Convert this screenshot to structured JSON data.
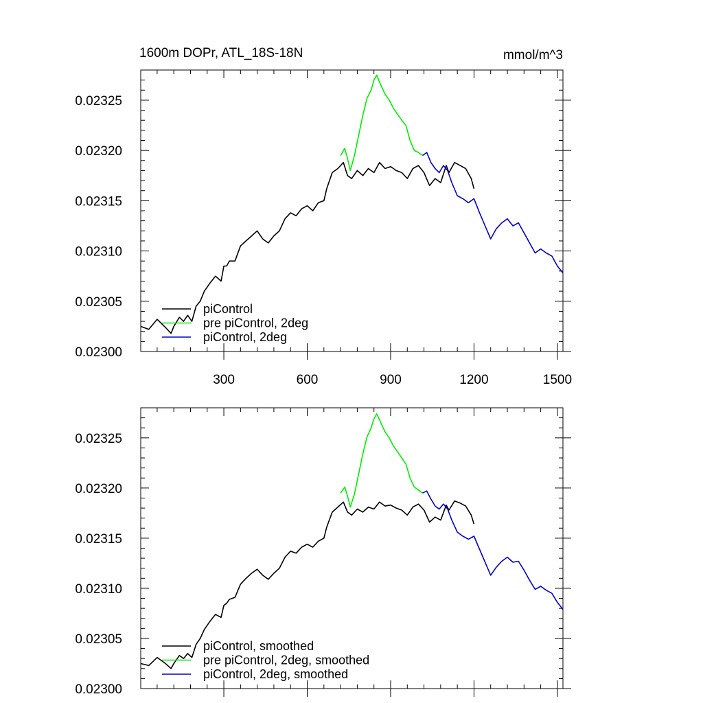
{
  "figure": {
    "title_left": "1600m DOPr, ATL_18S-18N",
    "title_right": "mmol/m^3"
  },
  "colors": {
    "control": "#000000",
    "pre": "#00ee00",
    "twodeg": "#0000cc"
  },
  "chart_data": [
    {
      "type": "line",
      "title": "1600m DOPr, ATL_18S-18N",
      "units": "mmol/m^3",
      "xlim": [
        1,
        1520
      ],
      "ylim": [
        0.023,
        0.02328
      ],
      "xticks": [
        300,
        600,
        900,
        1200,
        1500
      ],
      "xtick_labels": [
        "300",
        "600",
        "900",
        "1200",
        "1500"
      ],
      "yticks": [
        0.023,
        0.02305,
        0.0231,
        0.02315,
        0.0232,
        0.02325
      ],
      "ytick_labels": [
        "0.02300",
        "0.02305",
        "0.02310",
        "0.02315",
        "0.02320",
        "0.02325"
      ],
      "legend_position": "bottom-left",
      "series": [
        {
          "name": "piControl",
          "color": "#000000",
          "x": [
            1,
            30,
            60,
            75,
            90,
            110,
            120,
            140,
            155,
            170,
            185,
            200,
            215,
            230,
            250,
            270,
            290,
            300,
            310,
            320,
            340,
            360,
            380,
            400,
            420,
            440,
            460,
            480,
            500,
            520,
            540,
            560,
            580,
            600,
            620,
            640,
            660,
            670,
            690,
            710,
            730,
            745,
            760,
            780,
            800,
            820,
            840,
            860,
            880,
            900,
            920,
            940,
            960,
            980,
            1000,
            1020,
            1040,
            1060,
            1080,
            1100,
            1110,
            1130,
            1150,
            1170,
            1190,
            1200
          ],
          "values": [
            0.023025,
            0.023022,
            0.023032,
            0.023028,
            0.023024,
            0.023018,
            0.023025,
            0.023034,
            0.02303,
            0.023036,
            0.02303,
            0.023045,
            0.02305,
            0.02306,
            0.023068,
            0.023075,
            0.02307,
            0.023085,
            0.023085,
            0.02309,
            0.02309,
            0.023105,
            0.02311,
            0.023115,
            0.02312,
            0.023112,
            0.023108,
            0.023115,
            0.02312,
            0.023132,
            0.023138,
            0.023135,
            0.023142,
            0.023145,
            0.02314,
            0.023148,
            0.02315,
            0.023162,
            0.023178,
            0.023182,
            0.023188,
            0.023175,
            0.023172,
            0.02318,
            0.023175,
            0.023182,
            0.023178,
            0.023188,
            0.023182,
            0.023184,
            0.02318,
            0.023178,
            0.023172,
            0.023182,
            0.023185,
            0.023178,
            0.023165,
            0.023172,
            0.023168,
            0.023185,
            0.023178,
            0.023188,
            0.023185,
            0.023182,
            0.023172,
            0.023162
          ]
        },
        {
          "name": "pre piControl, 2deg",
          "color": "#00ee00",
          "x": [
            720,
            735,
            745,
            755,
            770,
            785,
            800,
            815,
            830,
            840,
            850,
            860,
            870,
            880,
            895,
            910,
            925,
            940,
            955,
            970,
            985,
            1000,
            1015
          ],
          "values": [
            0.023195,
            0.023202,
            0.023192,
            0.02318,
            0.023195,
            0.023215,
            0.023235,
            0.023252,
            0.02326,
            0.02327,
            0.023275,
            0.023268,
            0.023262,
            0.023256,
            0.02325,
            0.023242,
            0.023236,
            0.02323,
            0.023225,
            0.02321,
            0.0232,
            0.023198,
            0.023195
          ]
        },
        {
          "name": "piControl, 2deg",
          "color": "#0000cc",
          "x": [
            1015,
            1030,
            1045,
            1060,
            1075,
            1090,
            1105,
            1120,
            1140,
            1160,
            1180,
            1200,
            1220,
            1240,
            1260,
            1280,
            1300,
            1320,
            1340,
            1360,
            1380,
            1400,
            1420,
            1440,
            1460,
            1480,
            1500,
            1520
          ],
          "values": [
            0.023195,
            0.023198,
            0.023188,
            0.023182,
            0.023178,
            0.023185,
            0.02318,
            0.023168,
            0.023155,
            0.023152,
            0.023148,
            0.023152,
            0.023138,
            0.023125,
            0.023112,
            0.023122,
            0.023128,
            0.023132,
            0.023125,
            0.023128,
            0.023118,
            0.023108,
            0.023098,
            0.023102,
            0.023098,
            0.023095,
            0.023085,
            0.023078
          ]
        }
      ]
    },
    {
      "type": "line",
      "xlim": [
        1,
        1520
      ],
      "ylim": [
        0.023,
        0.02328
      ],
      "xticks": [
        300,
        600,
        900,
        1200,
        1500
      ],
      "yticks": [
        0.023,
        0.02305,
        0.0231,
        0.02315,
        0.0232,
        0.02325
      ],
      "ytick_labels": [
        "0.02300",
        "0.02305",
        "0.02310",
        "0.02315",
        "0.02320",
        "0.02325"
      ],
      "legend_position": "bottom-left",
      "series": [
        {
          "name": "piControl, smoothed",
          "color": "#000000",
          "x": [
            1,
            30,
            60,
            75,
            90,
            110,
            120,
            140,
            155,
            170,
            185,
            200,
            215,
            230,
            250,
            270,
            290,
            300,
            310,
            320,
            340,
            360,
            380,
            400,
            420,
            440,
            460,
            480,
            500,
            520,
            540,
            560,
            580,
            600,
            620,
            640,
            660,
            670,
            690,
            710,
            730,
            745,
            760,
            780,
            800,
            820,
            840,
            860,
            880,
            900,
            920,
            940,
            960,
            980,
            1000,
            1020,
            1040,
            1060,
            1080,
            1100,
            1110,
            1130,
            1150,
            1170,
            1190,
            1200
          ],
          "values": [
            0.023025,
            0.023023,
            0.023031,
            0.023028,
            0.023025,
            0.02302,
            0.023025,
            0.023033,
            0.02303,
            0.023035,
            0.023031,
            0.023044,
            0.02305,
            0.023059,
            0.023067,
            0.023074,
            0.023071,
            0.023083,
            0.023085,
            0.023089,
            0.023091,
            0.023104,
            0.02311,
            0.023115,
            0.023119,
            0.023113,
            0.023109,
            0.023115,
            0.02312,
            0.023131,
            0.023137,
            0.023135,
            0.023141,
            0.023144,
            0.023141,
            0.023147,
            0.02315,
            0.023161,
            0.023176,
            0.023181,
            0.023186,
            0.023176,
            0.023173,
            0.023179,
            0.023176,
            0.023181,
            0.023179,
            0.023186,
            0.023182,
            0.023183,
            0.02318,
            0.023178,
            0.023173,
            0.023181,
            0.023184,
            0.023178,
            0.023166,
            0.023171,
            0.023168,
            0.023183,
            0.023178,
            0.023187,
            0.023185,
            0.023182,
            0.023173,
            0.023164
          ]
        },
        {
          "name": "pre piControl, 2deg, smoothed",
          "color": "#00ee00",
          "x": [
            720,
            735,
            745,
            755,
            770,
            785,
            800,
            815,
            830,
            840,
            850,
            860,
            870,
            880,
            895,
            910,
            925,
            940,
            955,
            970,
            985,
            1000,
            1015
          ],
          "values": [
            0.023195,
            0.023201,
            0.023192,
            0.023181,
            0.023194,
            0.023214,
            0.023234,
            0.023251,
            0.02326,
            0.023269,
            0.023274,
            0.023268,
            0.023262,
            0.023256,
            0.02325,
            0.023242,
            0.023236,
            0.02323,
            0.023224,
            0.02321,
            0.023201,
            0.023198,
            0.023195
          ]
        },
        {
          "name": "piControl, 2deg, smoothed",
          "color": "#0000cc",
          "x": [
            1015,
            1030,
            1045,
            1060,
            1075,
            1090,
            1105,
            1120,
            1140,
            1160,
            1180,
            1200,
            1220,
            1240,
            1260,
            1280,
            1300,
            1320,
            1340,
            1360,
            1380,
            1400,
            1420,
            1440,
            1460,
            1480,
            1500,
            1520
          ],
          "values": [
            0.023195,
            0.023197,
            0.023189,
            0.023182,
            0.023179,
            0.023184,
            0.023179,
            0.023168,
            0.023156,
            0.023152,
            0.023149,
            0.023152,
            0.023139,
            0.023126,
            0.023113,
            0.023121,
            0.023127,
            0.023131,
            0.023126,
            0.023127,
            0.023118,
            0.023108,
            0.023099,
            0.023102,
            0.023098,
            0.023095,
            0.023086,
            0.023079
          ]
        }
      ]
    }
  ]
}
